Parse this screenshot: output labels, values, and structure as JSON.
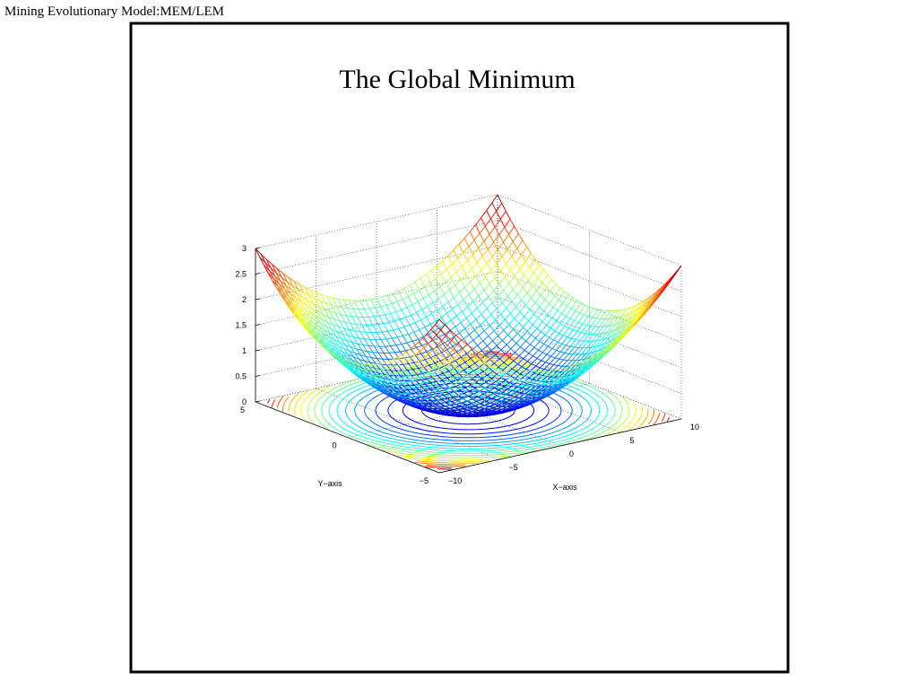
{
  "header": {
    "title": "Mining Evolutionary Model:MEM/LEM"
  },
  "figure": {
    "title": "The Global Minimum",
    "z_ticks": [
      "0",
      "0.5",
      "1",
      "1.5",
      "2",
      "2.5",
      "3"
    ],
    "y_ticks": [
      "5",
      "0",
      "−5"
    ],
    "x_ticks": [
      "−10",
      "−5",
      "0",
      "5",
      "10"
    ],
    "y_label": "Y−axis",
    "x_label": "X−axis"
  }
}
